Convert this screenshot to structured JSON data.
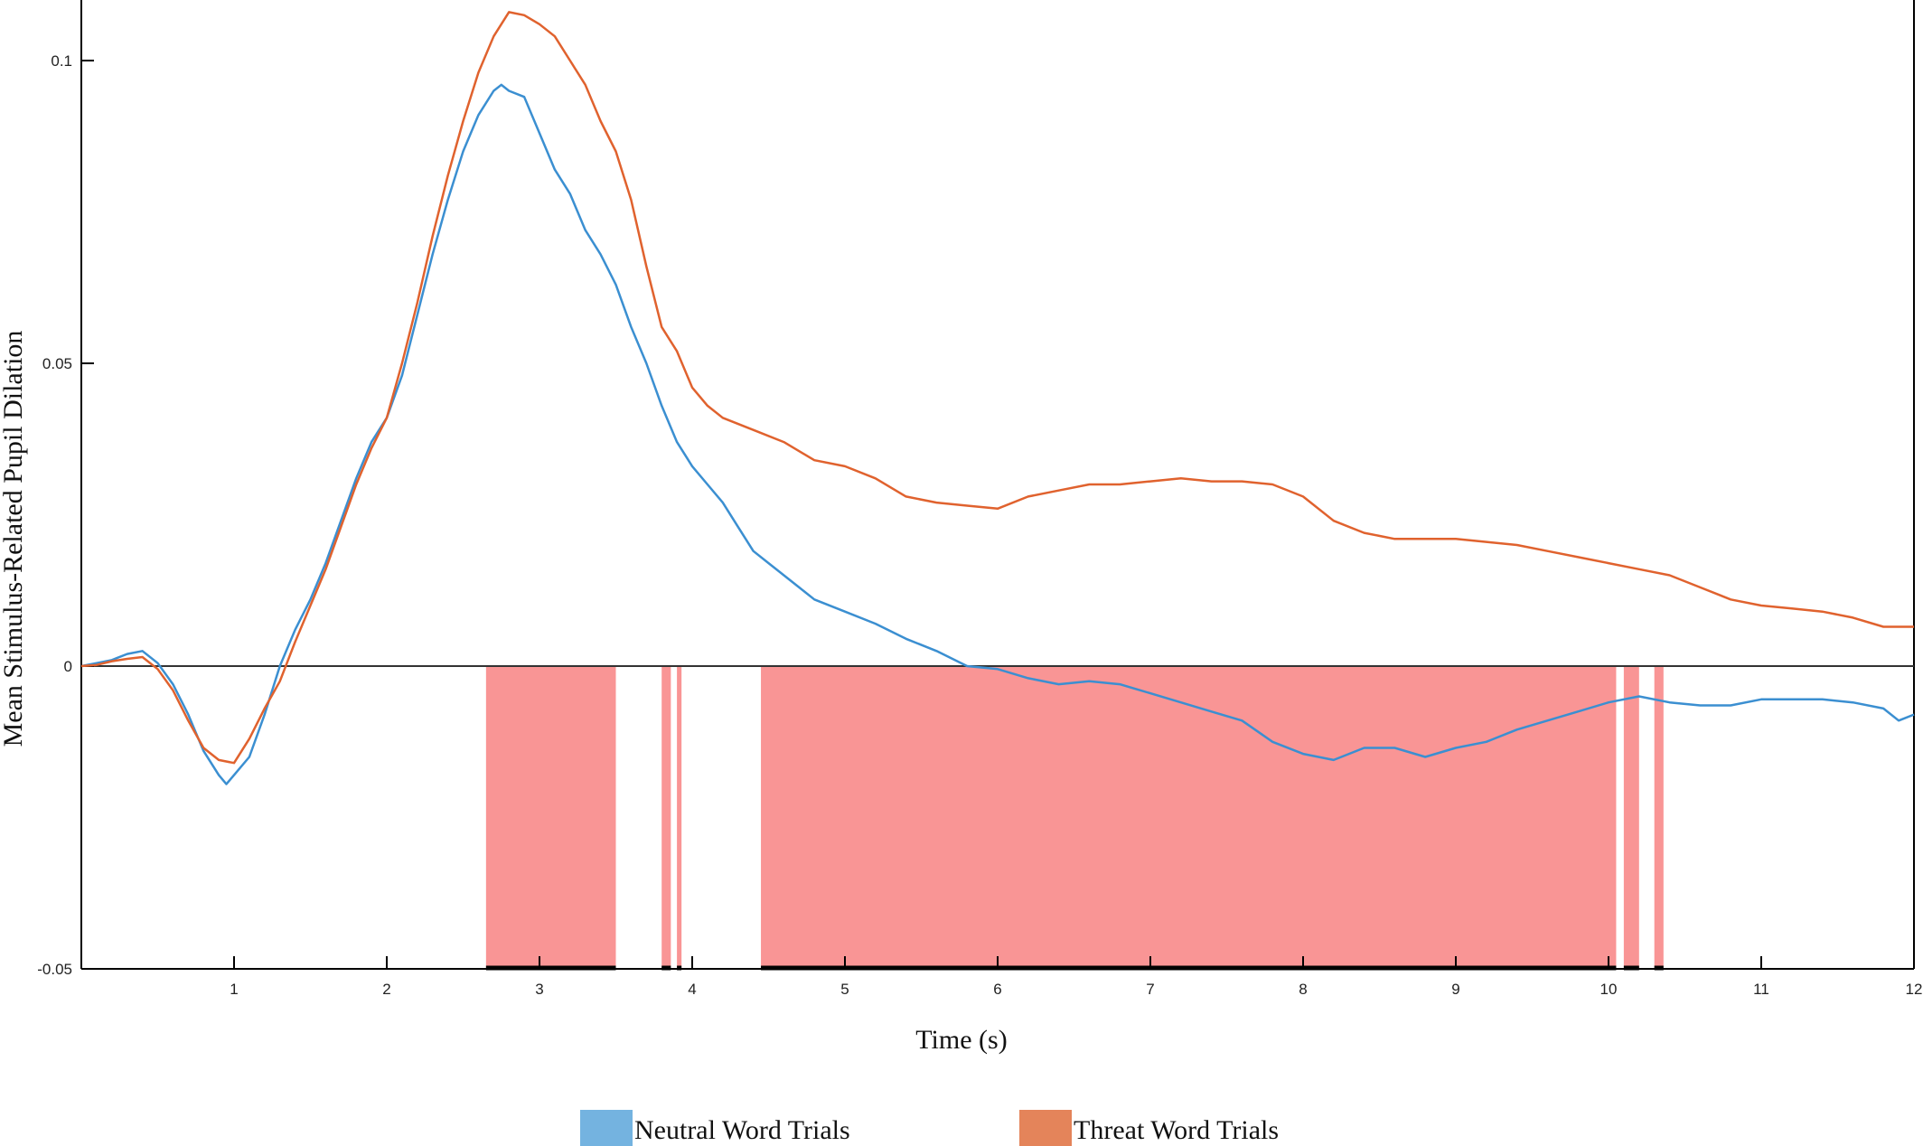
{
  "chart_data": {
    "type": "line",
    "title": "",
    "xlabel": "Time  (s)",
    "ylabel": "Mean Stimulus-Related  Pupil  Dilation",
    "xlim": [
      0,
      12
    ],
    "ylim": [
      -0.05,
      0.11
    ],
    "x_ticks": [
      {
        "value": 1,
        "label": "1"
      },
      {
        "value": 2,
        "label": "2"
      },
      {
        "value": 3,
        "label": "3"
      },
      {
        "value": 4,
        "label": "4"
      },
      {
        "value": 5,
        "label": "5"
      },
      {
        "value": 6,
        "label": "6"
      },
      {
        "value": 7,
        "label": "7"
      },
      {
        "value": 8,
        "label": "8"
      },
      {
        "value": 9,
        "label": "9"
      },
      {
        "value": 10,
        "label": "10"
      },
      {
        "value": 11,
        "label": "11"
      },
      {
        "value": 12,
        "label": "12"
      }
    ],
    "y_ticks": [
      {
        "value": -0.05,
        "label": "-0.05"
      },
      {
        "value": 0,
        "label": "0"
      },
      {
        "value": 0.05,
        "label": "0.05"
      },
      {
        "value": 0.1,
        "label": "0.1"
      }
    ],
    "grid": false,
    "legend_position": "bottom",
    "series": [
      {
        "name": "Neutral Word Trials",
        "color": "#3b8fd1",
        "legend_color": "#74b3e0",
        "points": [
          [
            0.0,
            0.0
          ],
          [
            0.1,
            0.0005
          ],
          [
            0.2,
            0.001
          ],
          [
            0.3,
            0.002
          ],
          [
            0.4,
            0.0025
          ],
          [
            0.5,
            0.0005
          ],
          [
            0.6,
            -0.003
          ],
          [
            0.7,
            -0.008
          ],
          [
            0.8,
            -0.014
          ],
          [
            0.9,
            -0.018
          ],
          [
            0.95,
            -0.0195
          ],
          [
            1.0,
            -0.018
          ],
          [
            1.1,
            -0.015
          ],
          [
            1.2,
            -0.008
          ],
          [
            1.3,
            0.0
          ],
          [
            1.4,
            0.006
          ],
          [
            1.5,
            0.011
          ],
          [
            1.6,
            0.017
          ],
          [
            1.7,
            0.024
          ],
          [
            1.8,
            0.031
          ],
          [
            1.9,
            0.037
          ],
          [
            2.0,
            0.041
          ],
          [
            2.1,
            0.048
          ],
          [
            2.2,
            0.058
          ],
          [
            2.3,
            0.068
          ],
          [
            2.4,
            0.077
          ],
          [
            2.5,
            0.085
          ],
          [
            2.6,
            0.091
          ],
          [
            2.7,
            0.095
          ],
          [
            2.75,
            0.096
          ],
          [
            2.8,
            0.095
          ],
          [
            2.9,
            0.094
          ],
          [
            3.0,
            0.088
          ],
          [
            3.1,
            0.082
          ],
          [
            3.2,
            0.078
          ],
          [
            3.3,
            0.072
          ],
          [
            3.4,
            0.068
          ],
          [
            3.5,
            0.063
          ],
          [
            3.6,
            0.056
          ],
          [
            3.7,
            0.05
          ],
          [
            3.8,
            0.043
          ],
          [
            3.9,
            0.037
          ],
          [
            4.0,
            0.033
          ],
          [
            4.1,
            0.03
          ],
          [
            4.2,
            0.027
          ],
          [
            4.3,
            0.023
          ],
          [
            4.4,
            0.019
          ],
          [
            4.5,
            0.017
          ],
          [
            4.6,
            0.015
          ],
          [
            4.7,
            0.013
          ],
          [
            4.8,
            0.011
          ],
          [
            5.0,
            0.009
          ],
          [
            5.2,
            0.007
          ],
          [
            5.4,
            0.0045
          ],
          [
            5.6,
            0.0025
          ],
          [
            5.8,
            0.0
          ],
          [
            6.0,
            -0.0005
          ],
          [
            6.2,
            -0.002
          ],
          [
            6.4,
            -0.003
          ],
          [
            6.6,
            -0.0025
          ],
          [
            6.8,
            -0.003
          ],
          [
            7.0,
            -0.0045
          ],
          [
            7.2,
            -0.006
          ],
          [
            7.4,
            -0.0075
          ],
          [
            7.6,
            -0.009
          ],
          [
            7.8,
            -0.0125
          ],
          [
            8.0,
            -0.0145
          ],
          [
            8.2,
            -0.0155
          ],
          [
            8.4,
            -0.0135
          ],
          [
            8.6,
            -0.0135
          ],
          [
            8.8,
            -0.015
          ],
          [
            9.0,
            -0.0135
          ],
          [
            9.2,
            -0.0125
          ],
          [
            9.4,
            -0.0105
          ],
          [
            9.6,
            -0.009
          ],
          [
            9.8,
            -0.0075
          ],
          [
            10.0,
            -0.006
          ],
          [
            10.2,
            -0.005
          ],
          [
            10.4,
            -0.006
          ],
          [
            10.6,
            -0.0065
          ],
          [
            10.8,
            -0.0065
          ],
          [
            11.0,
            -0.0055
          ],
          [
            11.2,
            -0.0055
          ],
          [
            11.4,
            -0.0055
          ],
          [
            11.6,
            -0.006
          ],
          [
            11.8,
            -0.007
          ],
          [
            11.9,
            -0.009
          ],
          [
            12.0,
            -0.008
          ]
        ]
      },
      {
        "name": "Threat Word Trials",
        "color": "#e0622e",
        "legend_color": "#e4845a",
        "points": [
          [
            0.0,
            0.0
          ],
          [
            0.1,
            0.0002
          ],
          [
            0.2,
            0.0008
          ],
          [
            0.3,
            0.0012
          ],
          [
            0.4,
            0.0015
          ],
          [
            0.5,
            -0.0005
          ],
          [
            0.6,
            -0.004
          ],
          [
            0.7,
            -0.009
          ],
          [
            0.8,
            -0.0135
          ],
          [
            0.9,
            -0.0155
          ],
          [
            1.0,
            -0.016
          ],
          [
            1.1,
            -0.012
          ],
          [
            1.2,
            -0.007
          ],
          [
            1.3,
            -0.0025
          ],
          [
            1.4,
            0.004
          ],
          [
            1.5,
            0.01
          ],
          [
            1.6,
            0.016
          ],
          [
            1.7,
            0.023
          ],
          [
            1.8,
            0.03
          ],
          [
            1.9,
            0.036
          ],
          [
            2.0,
            0.041
          ],
          [
            2.1,
            0.05
          ],
          [
            2.2,
            0.06
          ],
          [
            2.3,
            0.071
          ],
          [
            2.4,
            0.081
          ],
          [
            2.5,
            0.09
          ],
          [
            2.6,
            0.098
          ],
          [
            2.7,
            0.104
          ],
          [
            2.8,
            0.108
          ],
          [
            2.9,
            0.1075
          ],
          [
            3.0,
            0.106
          ],
          [
            3.1,
            0.104
          ],
          [
            3.2,
            0.1
          ],
          [
            3.3,
            0.096
          ],
          [
            3.4,
            0.09
          ],
          [
            3.5,
            0.085
          ],
          [
            3.6,
            0.077
          ],
          [
            3.7,
            0.066
          ],
          [
            3.8,
            0.056
          ],
          [
            3.9,
            0.052
          ],
          [
            4.0,
            0.046
          ],
          [
            4.1,
            0.043
          ],
          [
            4.2,
            0.041
          ],
          [
            4.4,
            0.039
          ],
          [
            4.6,
            0.037
          ],
          [
            4.8,
            0.034
          ],
          [
            5.0,
            0.033
          ],
          [
            5.2,
            0.031
          ],
          [
            5.4,
            0.028
          ],
          [
            5.6,
            0.027
          ],
          [
            5.8,
            0.0265
          ],
          [
            6.0,
            0.026
          ],
          [
            6.2,
            0.028
          ],
          [
            6.4,
            0.029
          ],
          [
            6.6,
            0.03
          ],
          [
            6.8,
            0.03
          ],
          [
            7.0,
            0.0305
          ],
          [
            7.2,
            0.031
          ],
          [
            7.4,
            0.0305
          ],
          [
            7.6,
            0.0305
          ],
          [
            7.8,
            0.03
          ],
          [
            8.0,
            0.028
          ],
          [
            8.2,
            0.024
          ],
          [
            8.4,
            0.022
          ],
          [
            8.6,
            0.021
          ],
          [
            8.8,
            0.021
          ],
          [
            9.0,
            0.021
          ],
          [
            9.2,
            0.0205
          ],
          [
            9.4,
            0.02
          ],
          [
            9.6,
            0.019
          ],
          [
            9.8,
            0.018
          ],
          [
            10.0,
            0.017
          ],
          [
            10.2,
            0.016
          ],
          [
            10.4,
            0.015
          ],
          [
            10.6,
            0.013
          ],
          [
            10.8,
            0.011
          ],
          [
            11.0,
            0.01
          ],
          [
            11.2,
            0.0095
          ],
          [
            11.4,
            0.009
          ],
          [
            11.6,
            0.008
          ],
          [
            11.8,
            0.0065
          ],
          [
            12.0,
            0.0065
          ]
        ]
      }
    ],
    "shaded_regions": {
      "color": "#f99595",
      "ranges": [
        [
          2.65,
          3.5
        ],
        [
          3.8,
          3.86
        ],
        [
          3.9,
          3.93
        ],
        [
          4.45,
          10.05
        ],
        [
          10.1,
          10.2
        ],
        [
          10.3,
          10.36
        ]
      ]
    }
  }
}
